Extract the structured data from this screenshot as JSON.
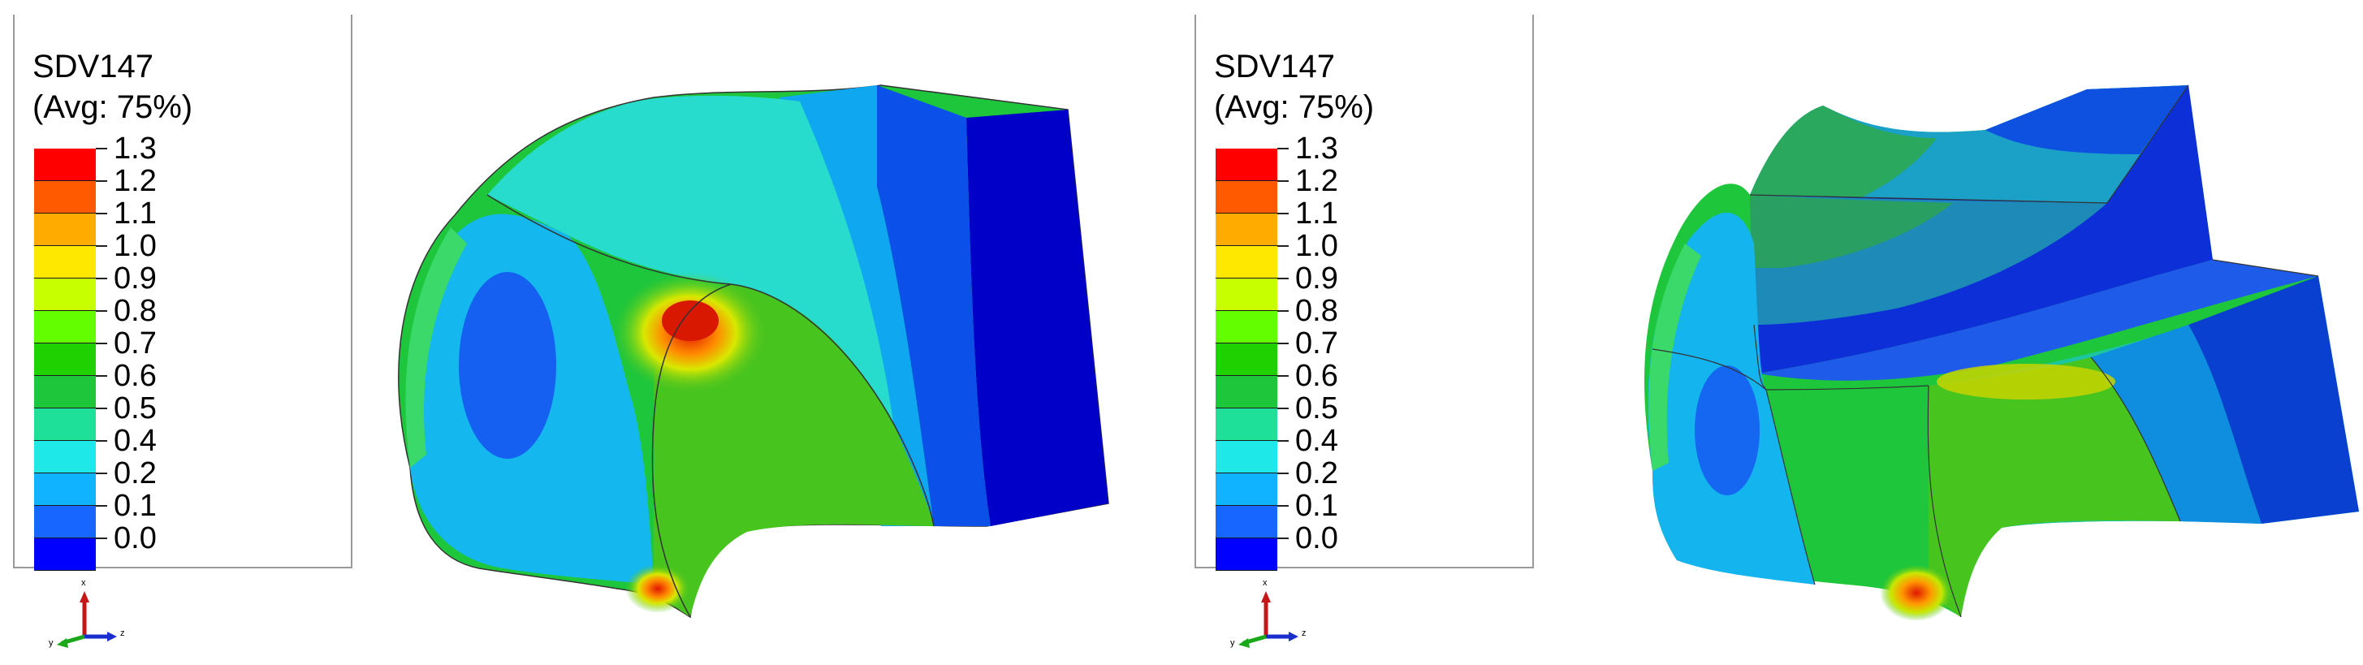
{
  "panels": [
    {
      "legend": {
        "title": "SDV147",
        "subtitle": "(Avg: 75%)",
        "levels": [
          "1.3",
          "1.2",
          "1.1",
          "1.0",
          "0.9",
          "0.8",
          "0.7",
          "0.6",
          "0.5",
          "0.4",
          "0.2",
          "0.1",
          "0.0"
        ],
        "colors": [
          "#ff0000",
          "#ff5a00",
          "#ffab00",
          "#ffe800",
          "#c8ff00",
          "#63ff00",
          "#1fd100",
          "#1ec63c",
          "#1fe098",
          "#1fe8e8",
          "#0fb3ff",
          "#1766ff",
          "#0000ff"
        ]
      },
      "triad": {
        "x": "x",
        "y": "y",
        "z": "z"
      }
    },
    {
      "legend": {
        "title": "SDV147",
        "subtitle": "(Avg: 75%)",
        "levels": [
          "1.3",
          "1.2",
          "1.1",
          "1.0",
          "0.9",
          "0.8",
          "0.7",
          "0.6",
          "0.5",
          "0.4",
          "0.2",
          "0.1",
          "0.0"
        ],
        "colors": [
          "#ff0000",
          "#ff5a00",
          "#ffab00",
          "#ffe800",
          "#c8ff00",
          "#63ff00",
          "#1fd100",
          "#1ec63c",
          "#1fe098",
          "#1fe8e8",
          "#0fb3ff",
          "#1766ff",
          "#0000ff"
        ]
      },
      "triad": {
        "x": "x",
        "y": "y",
        "z": "z"
      }
    }
  ]
}
